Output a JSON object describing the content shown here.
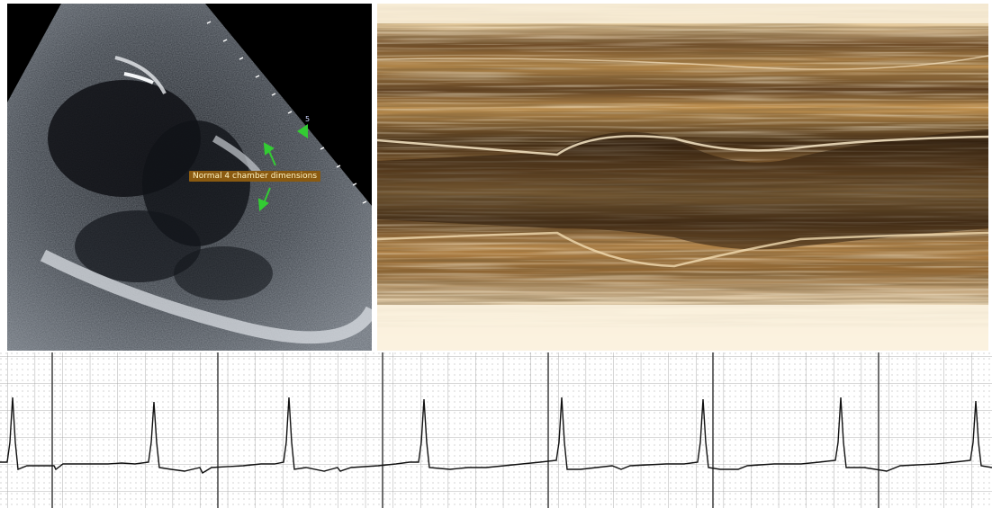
{
  "echo": {
    "annotation": "Normal 4 chamber dimensions",
    "depth_marker": "5"
  },
  "colors": {
    "background": "#ffffff",
    "echo_background": "#000000",
    "arrow": "#33cc33",
    "mmode_tone": "#b88b4c",
    "ecg_trace": "#111111",
    "ecg_grid": "#9a9a9a"
  },
  "icons": [
    "arrow-icon",
    "triangle-marker-icon"
  ]
}
